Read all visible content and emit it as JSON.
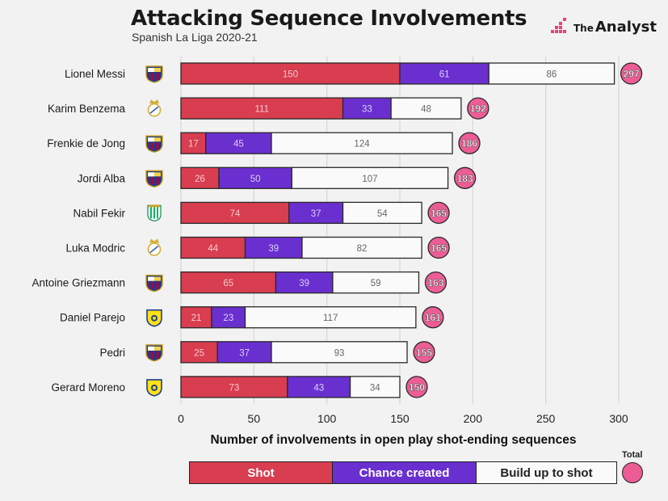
{
  "header": {
    "title": "Attacking Sequence Involvements",
    "subtitle": "Spanish La Liga 2020-21",
    "brand_prefix": "The",
    "brand_name": "Analyst"
  },
  "colors": {
    "shot": "#d83d50",
    "chance": "#6a2fcf",
    "build": "#fafafa",
    "total": "#ec5d95",
    "barcelona": "#a50044",
    "real_madrid": "#d4af37",
    "betis": "#0bb363",
    "villarreal": "#ffe114"
  },
  "legend": {
    "shot": "Shot",
    "chance": "Chance created",
    "build": "Build up to shot",
    "total": "Total"
  },
  "chart_data": {
    "type": "bar",
    "orientation": "horizontal",
    "stacked": true,
    "title": "Attacking Sequence Involvements",
    "subtitle": "Spanish La Liga 2020-21",
    "xlabel": "Number of involvements in open play shot-ending sequences",
    "ylabel": "",
    "xlim": [
      0,
      300
    ],
    "xticks": [
      0,
      50,
      100,
      150,
      200,
      250,
      300
    ],
    "grid": true,
    "categories": [
      "Lionel Messi",
      "Karim Benzema",
      "Frenkie de Jong",
      "Jordi Alba",
      "Nabil Fekir",
      "Luka Modric",
      "Antoine Griezmann",
      "Daniel Parejo",
      "Pedri",
      "Gerard Moreno"
    ],
    "clubs": [
      "barcelona",
      "real_madrid",
      "barcelona",
      "barcelona",
      "betis",
      "real_madrid",
      "barcelona",
      "villarreal",
      "barcelona",
      "villarreal"
    ],
    "series": [
      {
        "name": "Shot",
        "values": [
          150,
          111,
          17,
          26,
          74,
          44,
          65,
          21,
          25,
          73
        ]
      },
      {
        "name": "Chance created",
        "values": [
          61,
          33,
          45,
          50,
          37,
          39,
          39,
          23,
          37,
          43
        ]
      },
      {
        "name": "Build up to shot",
        "values": [
          86,
          48,
          124,
          107,
          54,
          82,
          59,
          117,
          93,
          34
        ]
      }
    ],
    "totals": [
      297,
      192,
      186,
      183,
      165,
      165,
      163,
      161,
      155,
      150
    ]
  }
}
